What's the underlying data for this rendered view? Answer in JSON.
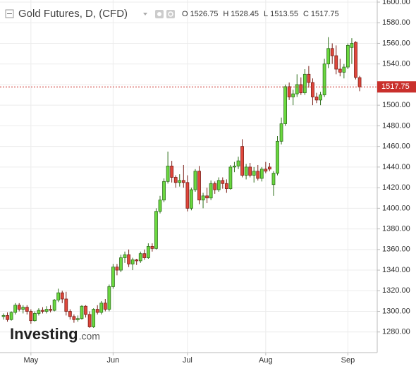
{
  "chart_data": {
    "type": "candlestick",
    "title": "Gold Futures, D, (CFD)",
    "ohlc_labels": [
      "O",
      "H",
      "L",
      "C"
    ],
    "logo": "Investing",
    "logo_suffix": ".com",
    "categories": [
      null,
      null,
      null,
      null,
      null,
      null,
      null,
      "May",
      null,
      null,
      null,
      null,
      null,
      null,
      null,
      null,
      null,
      null,
      null,
      null,
      null,
      null,
      null,
      null,
      null,
      null,
      null,
      null,
      "Jun",
      null,
      null,
      null,
      null,
      null,
      null,
      null,
      null,
      null,
      null,
      null,
      null,
      null,
      null,
      null,
      null,
      null,
      null,
      "Jul",
      null,
      null,
      null,
      null,
      null,
      null,
      null,
      null,
      null,
      null,
      null,
      null,
      null,
      null,
      null,
      null,
      null,
      null,
      null,
      "Aug",
      null,
      null,
      null,
      null,
      null,
      null,
      null,
      null,
      null,
      null,
      null,
      null,
      null,
      null,
      null,
      null,
      null,
      null,
      null,
      null,
      "Sep",
      null,
      null,
      null
    ],
    "open": [
      1295,
      1296,
      1292,
      1299,
      1306,
      1302,
      1304,
      1300,
      1291,
      1298,
      1301,
      1300,
      1302,
      1301,
      1311,
      1318,
      1312,
      1300,
      1295,
      1292,
      1293,
      1305,
      1297,
      1285,
      1302,
      1299,
      1308,
      1302,
      1324,
      1343,
      1340,
      1352,
      1355,
      1346,
      1350,
      1349,
      1356,
      1352,
      1363,
      1361,
      1397,
      1408,
      1426,
      1441,
      1430,
      1425,
      1427,
      1425,
      1400,
      1418,
      1436,
      1408,
      1412,
      1410,
      1424,
      1418,
      1427,
      1424,
      1419,
      1440,
      1441,
      1460,
      1432,
      1440,
      1432,
      1436,
      1429,
      1438,
      1440,
      1423,
      1434,
      1465,
      1482,
      1518,
      1508,
      1511,
      1520,
      1512,
      1530,
      1522,
      1508,
      1505,
      1510,
      1540,
      1555,
      1548,
      1535,
      1532,
      1537,
      1556,
      1561,
      1526.75
    ],
    "high": [
      1298,
      1299,
      1300,
      1308,
      1308,
      1306,
      1306,
      1302,
      1300,
      1303,
      1304,
      1305,
      1306,
      1312,
      1322,
      1320,
      1319,
      1302,
      1297,
      1296,
      1306,
      1306,
      1300,
      1303,
      1306,
      1310,
      1312,
      1326,
      1346,
      1346,
      1355,
      1358,
      1360,
      1352,
      1351,
      1358,
      1360,
      1366,
      1366,
      1400,
      1412,
      1429,
      1455,
      1446,
      1432,
      1433,
      1442,
      1432,
      1420,
      1438,
      1441,
      1415,
      1420,
      1427,
      1426,
      1430,
      1430,
      1428,
      1442,
      1445,
      1450,
      1467,
      1443,
      1444,
      1440,
      1442,
      1440,
      1445,
      1444,
      1436,
      1470,
      1488,
      1520,
      1522,
      1515,
      1530,
      1527,
      1535,
      1538,
      1526,
      1512,
      1513,
      1545,
      1566,
      1560,
      1558,
      1545,
      1540,
      1560,
      1565,
      1562,
      1528.45
    ],
    "low": [
      1292,
      1290,
      1291,
      1297,
      1300,
      1298,
      1297,
      1288,
      1290,
      1296,
      1298,
      1298,
      1299,
      1300,
      1309,
      1308,
      1296,
      1292,
      1289,
      1290,
      1292,
      1294,
      1284,
      1284,
      1297,
      1297,
      1300,
      1300,
      1322,
      1335,
      1338,
      1347,
      1343,
      1340,
      1345,
      1347,
      1350,
      1351,
      1358,
      1360,
      1395,
      1406,
      1424,
      1425,
      1420,
      1421,
      1420,
      1397,
      1398,
      1416,
      1404,
      1400,
      1405,
      1408,
      1414,
      1416,
      1419,
      1415,
      1418,
      1435,
      1438,
      1430,
      1428,
      1430,
      1425,
      1427,
      1426,
      1434,
      1436,
      1412,
      1432,
      1462,
      1480,
      1505,
      1500,
      1508,
      1510,
      1510,
      1517,
      1500,
      1502,
      1500,
      1508,
      1536,
      1540,
      1530,
      1528,
      1526,
      1535,
      1540,
      1525,
      1513.55
    ],
    "close": [
      1296,
      1292,
      1299,
      1306,
      1302,
      1304,
      1300,
      1291,
      1298,
      1301,
      1300,
      1302,
      1301,
      1311,
      1318,
      1312,
      1300,
      1295,
      1292,
      1293,
      1305,
      1297,
      1285,
      1302,
      1299,
      1308,
      1302,
      1324,
      1343,
      1340,
      1352,
      1355,
      1346,
      1350,
      1349,
      1356,
      1352,
      1363,
      1361,
      1397,
      1408,
      1426,
      1441,
      1430,
      1425,
      1427,
      1425,
      1400,
      1418,
      1436,
      1408,
      1412,
      1410,
      1424,
      1418,
      1427,
      1424,
      1419,
      1440,
      1441,
      1446,
      1432,
      1440,
      1432,
      1436,
      1429,
      1438,
      1436,
      1438,
      1434,
      1465,
      1482,
      1518,
      1508,
      1511,
      1520,
      1512,
      1530,
      1522,
      1508,
      1505,
      1510,
      1540,
      1555,
      1548,
      1535,
      1532,
      1537,
      1558,
      1560,
      1527,
      1517.75
    ],
    "up_color": "#6ad83f",
    "down_color": "#e0473c",
    "price_line_color": "#c9302c",
    "ylim": [
      1260,
      1600
    ],
    "yticks": [
      {
        "value": 1280,
        "label": "1280.00"
      },
      {
        "value": 1300,
        "label": "1300.00"
      },
      {
        "value": 1320,
        "label": "1320.00"
      },
      {
        "value": 1340,
        "label": "1340.00"
      },
      {
        "value": 1360,
        "label": "1360.00"
      },
      {
        "value": 1380,
        "label": "1380.00"
      },
      {
        "value": 1400,
        "label": "1400.00"
      },
      {
        "value": 1420,
        "label": "1420.00"
      },
      {
        "value": 1440,
        "label": "1440.00"
      },
      {
        "value": 1460,
        "label": "1460.00"
      },
      {
        "value": 1480,
        "label": "1480.00"
      },
      {
        "value": 1500,
        "label": "1500.00"
      },
      {
        "value": 1520,
        "label": "1520.00"
      },
      {
        "value": 1540,
        "label": "1540.00"
      },
      {
        "value": 1560,
        "label": "1560.00"
      },
      {
        "value": 1580,
        "label": "1580.00"
      },
      {
        "value": 1600,
        "label": "1600.00"
      }
    ],
    "grid": true
  }
}
